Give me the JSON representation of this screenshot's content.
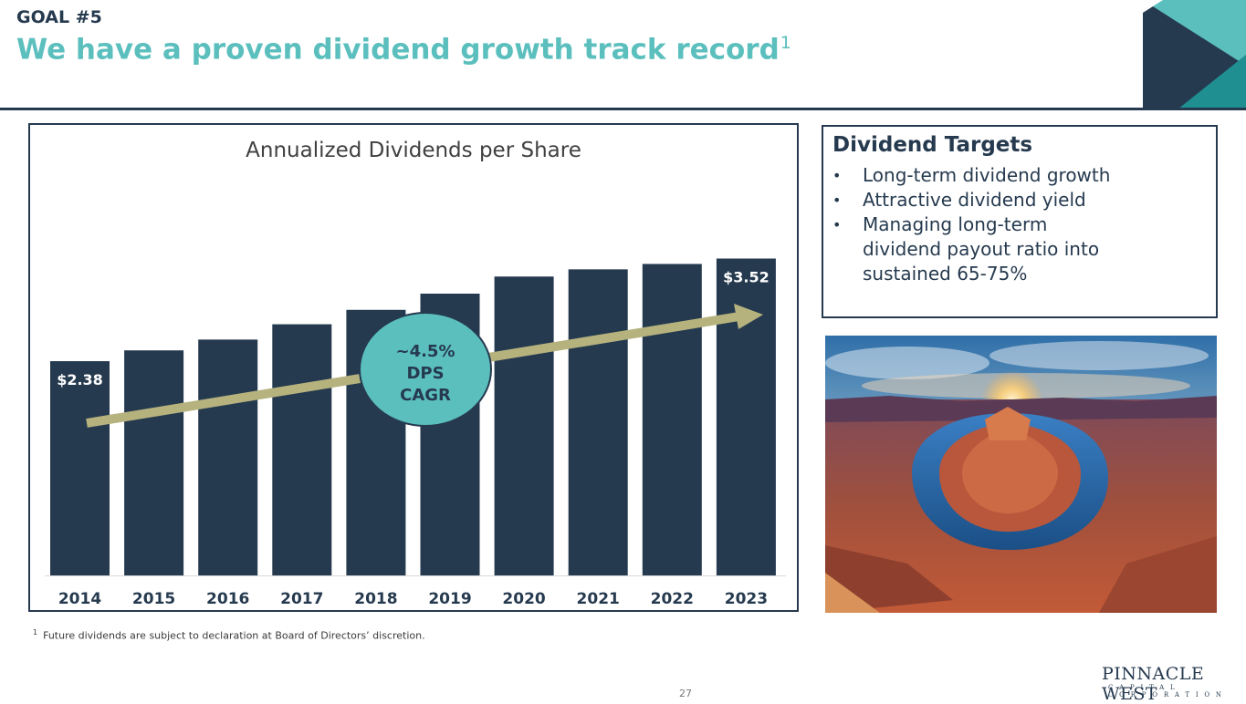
{
  "header": {
    "goal_label": "GOAL #5",
    "title": "We have a proven dividend growth track record",
    "title_footnote_marker": "1"
  },
  "colors": {
    "navy": "#263a4f",
    "teal": "#5bbfbe",
    "arrow": "#b5b27e"
  },
  "chart_data": {
    "type": "bar",
    "title": "Annualized Dividends per Share",
    "categories": [
      "2014",
      "2015",
      "2016",
      "2017",
      "2018",
      "2019",
      "2020",
      "2021",
      "2022",
      "2023"
    ],
    "values": [
      2.38,
      2.5,
      2.62,
      2.79,
      2.95,
      3.13,
      3.32,
      3.4,
      3.46,
      3.52
    ],
    "data_labels": [
      {
        "index": 0,
        "text": "$2.38"
      },
      {
        "index": 9,
        "text": "$3.52"
      }
    ],
    "ylim": [
      0,
      3.9
    ],
    "xlabel": "",
    "ylabel": "",
    "grid": false,
    "trend": {
      "callout_lines": [
        "~4.5%",
        "DPS",
        "CAGR"
      ]
    }
  },
  "targets": {
    "title": "Dividend Targets",
    "bullet": "•",
    "items": [
      {
        "lines": [
          "Long-term dividend growth"
        ]
      },
      {
        "lines": [
          "Attractive dividend yield"
        ]
      },
      {
        "lines": [
          "Managing long-term",
          "dividend payout ratio into",
          "sustained 65-75%"
        ]
      }
    ]
  },
  "footnote": {
    "marker": "1",
    "text": "Future dividends are subject to declaration at Board of Directors’ discretion."
  },
  "page_number": "27",
  "logo": {
    "name": "PINNACLE WEST",
    "subtitle": "CAPITAL CORPORATION"
  }
}
